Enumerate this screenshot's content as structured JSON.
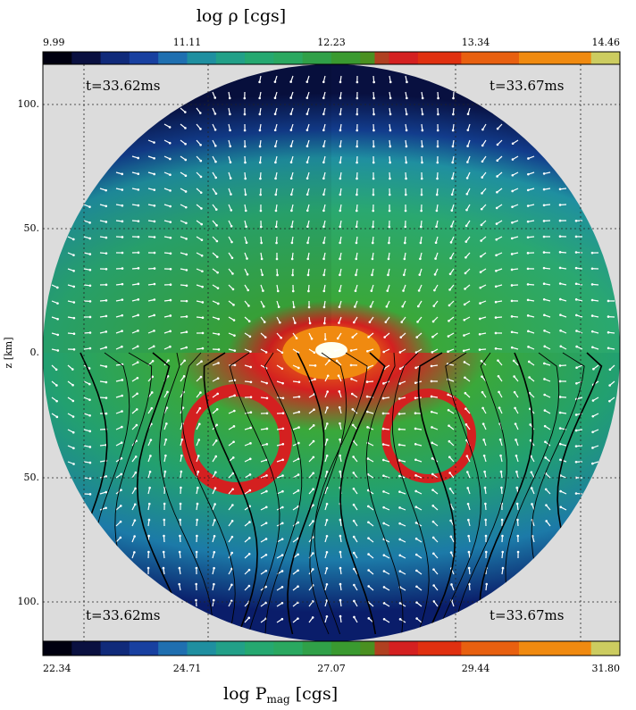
{
  "top_colorbar": {
    "title": "log ρ [cgs]",
    "ticks": [
      "9.99",
      "11.11",
      "12.23",
      "13.34",
      "14.46"
    ]
  },
  "bottom_colorbar": {
    "title": "log P",
    "title_subscript": "mag",
    "title_unit": "[cgs]",
    "ticks": [
      "22.34",
      "24.71",
      "27.07",
      "29.44",
      "31.80"
    ]
  },
  "y_axis": {
    "label": "z [km]",
    "ticks": [
      "100.",
      "50.",
      "0.",
      "50.",
      "100."
    ]
  },
  "panels": {
    "top_left": "t=33.62ms",
    "top_right": "t=33.67ms",
    "bottom_left": "t=33.62ms",
    "bottom_right": "t=33.67ms"
  }
}
